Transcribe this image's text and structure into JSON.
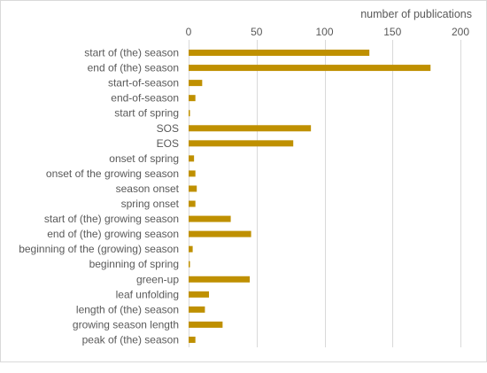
{
  "chart_data": {
    "type": "bar",
    "orientation": "horizontal",
    "xlabel": "number of publications",
    "xlabel_position": "top",
    "xlim": [
      0,
      200
    ],
    "xticks": [
      0,
      50,
      100,
      150,
      200
    ],
    "grid": true,
    "bar_color": "#BF9000",
    "categories": [
      "start of (the) season",
      "end of (the) season",
      "start-of-season",
      "end-of-season",
      "start of spring",
      "SOS",
      "EOS",
      "onset of spring",
      "onset of the growing season",
      "season onset",
      "spring onset",
      "start of (the) growing season",
      "end of (the) growing season",
      "beginning of the (growing) season",
      "beginning of spring",
      "green-up",
      "leaf unfolding",
      "length of (the) season",
      "growing season length",
      "peak of (the) season"
    ],
    "values": [
      133,
      178,
      10,
      5,
      1,
      90,
      77,
      4,
      5,
      6,
      5,
      31,
      46,
      3,
      1,
      45,
      15,
      12,
      25,
      5
    ]
  }
}
